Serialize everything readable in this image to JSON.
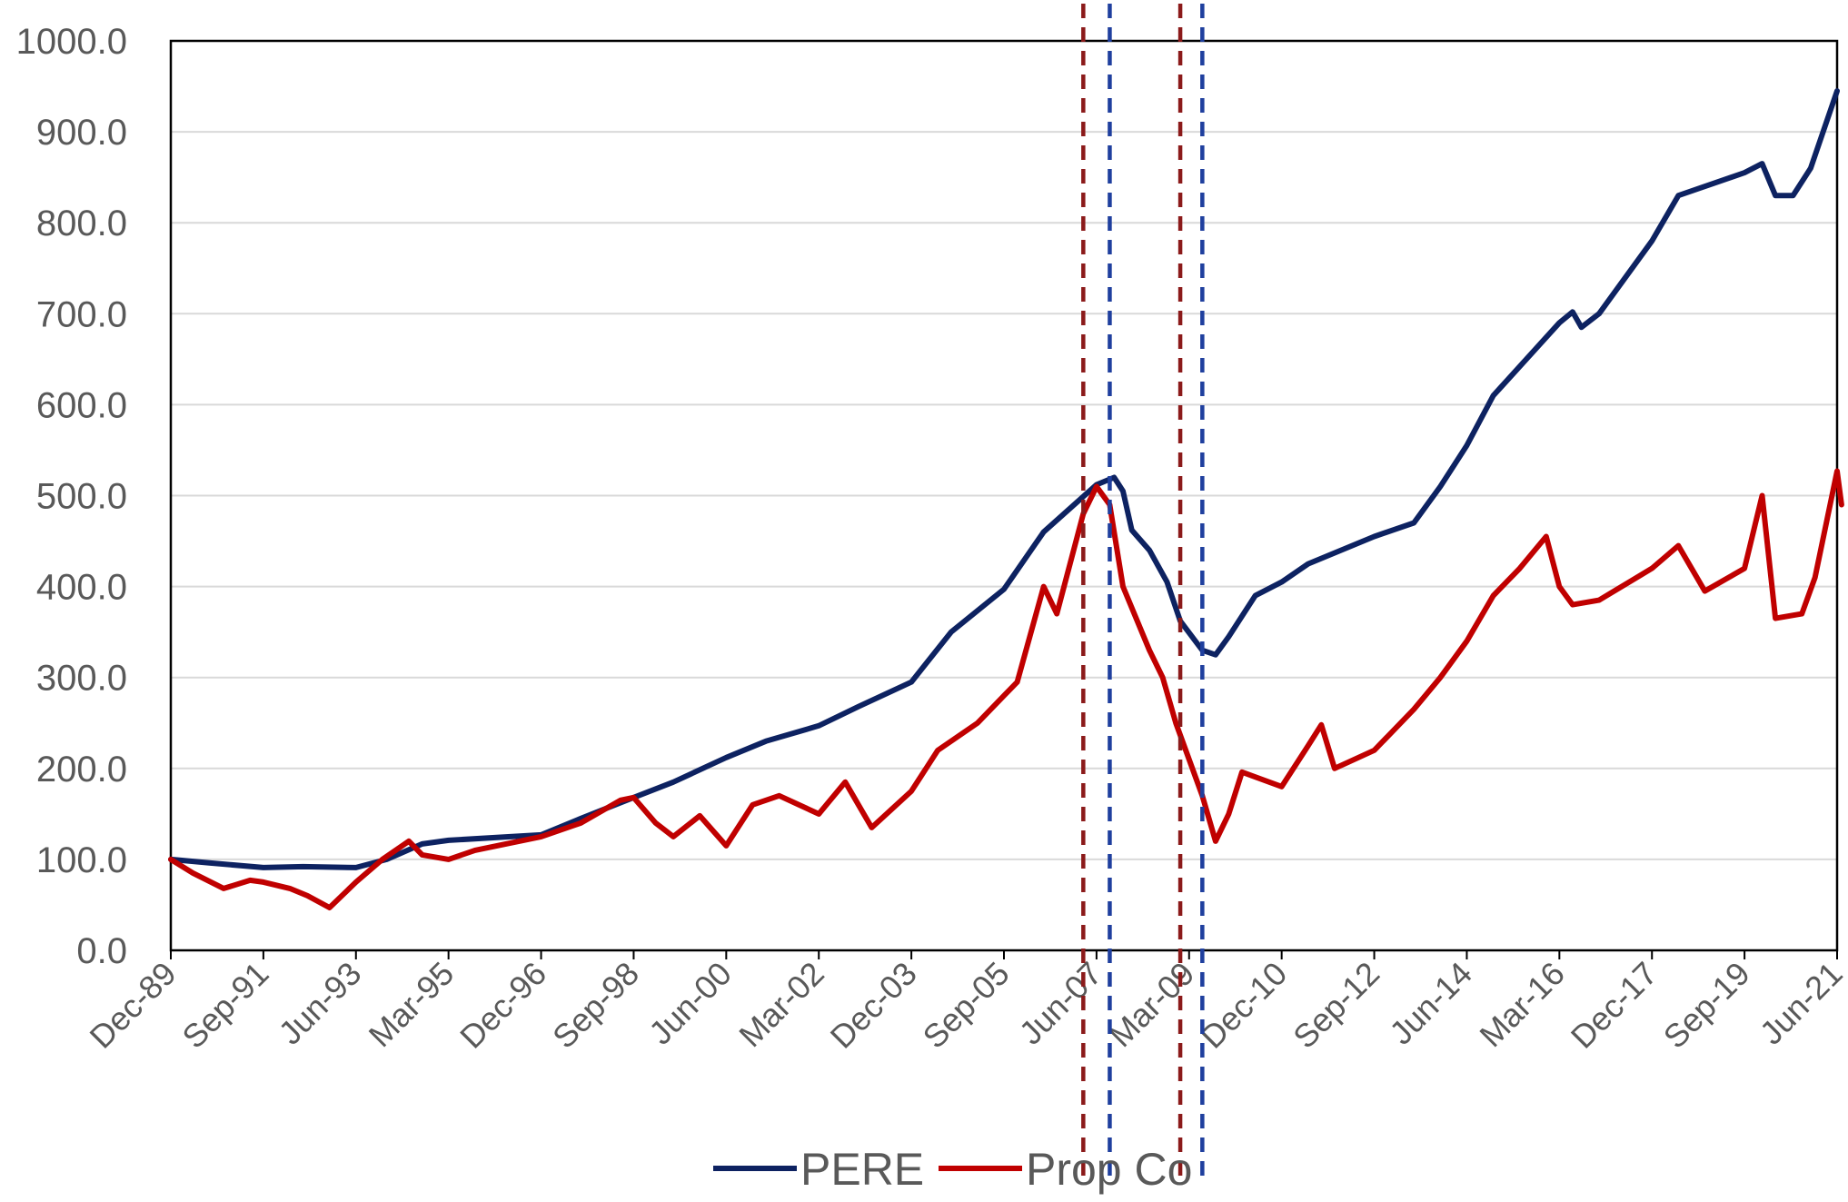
{
  "chart_data": {
    "type": "line",
    "title": "",
    "xlabel": "",
    "ylabel": "",
    "ylim": [
      0,
      1000
    ],
    "y_ticks": [
      "0.0",
      "100.0",
      "200.0",
      "300.0",
      "400.0",
      "500.0",
      "600.0",
      "700.0",
      "800.0",
      "900.0",
      "1000.0"
    ],
    "x_range": [
      "Dec-89",
      "Jun-21"
    ],
    "x_ticks": [
      "Dec-89",
      "Sep-91",
      "Jun-93",
      "Mar-95",
      "Dec-96",
      "Sep-98",
      "Jun-00",
      "Mar-02",
      "Dec-03",
      "Sep-05",
      "Jun-07",
      "Mar-09",
      "Dec-10",
      "Sep-12",
      "Jun-14",
      "Mar-16",
      "Dec-17",
      "Sep-19",
      "Jun-21"
    ],
    "grid": true,
    "legend": "bottom",
    "series": [
      {
        "name": "PERE",
        "color": "#0d2261",
        "points": [
          [
            "Dec-89",
            100
          ],
          [
            "Sep-90",
            96
          ],
          [
            "Sep-91",
            91
          ],
          [
            "Jun-92",
            92
          ],
          [
            "Jun-93",
            91
          ],
          [
            "Jan-94",
            100
          ],
          [
            "Sep-94",
            117
          ],
          [
            "Mar-95",
            121
          ],
          [
            "Dec-96",
            127
          ],
          [
            "Sep-97",
            145
          ],
          [
            "Sep-98",
            168
          ],
          [
            "Jun-99",
            185
          ],
          [
            "Jun-00",
            212
          ],
          [
            "Mar-01",
            230
          ],
          [
            "Mar-02",
            247
          ],
          [
            "Dec-02",
            268
          ],
          [
            "Dec-03",
            295
          ],
          [
            "Sep-04",
            350
          ],
          [
            "Sep-05",
            397
          ],
          [
            "Jun-06",
            460
          ],
          [
            "Jun-07",
            512
          ],
          [
            "Oct-07",
            520
          ],
          [
            "Dec-07",
            505
          ],
          [
            "Feb-08",
            462
          ],
          [
            "Jun-08",
            440
          ],
          [
            "Oct-08",
            405
          ],
          [
            "Jan-09",
            362
          ],
          [
            "Jun-09",
            330
          ],
          [
            "Sep-09",
            325
          ],
          [
            "Dec-09",
            345
          ],
          [
            "Jun-10",
            390
          ],
          [
            "Dec-10",
            405
          ],
          [
            "Jun-11",
            425
          ],
          [
            "Sep-12",
            455
          ],
          [
            "Jun-13",
            470
          ],
          [
            "Dec-13",
            510
          ],
          [
            "Jun-14",
            555
          ],
          [
            "Dec-14",
            610
          ],
          [
            "Mar-16",
            690
          ],
          [
            "Jun-16",
            702
          ],
          [
            "Aug-16",
            685
          ],
          [
            "Dec-16",
            700
          ],
          [
            "Dec-17",
            780
          ],
          [
            "Jun-18",
            830
          ],
          [
            "Sep-19",
            855
          ],
          [
            "Jan-20",
            865
          ],
          [
            "Apr-20",
            830
          ],
          [
            "Aug-20",
            830
          ],
          [
            "Dec-20",
            860
          ],
          [
            "Jun-21",
            945
          ]
        ]
      },
      {
        "name": "Prop Co",
        "color": "#c00000",
        "points": [
          [
            "Dec-89",
            100
          ],
          [
            "May-90",
            85
          ],
          [
            "Dec-90",
            68
          ],
          [
            "Jun-91",
            77
          ],
          [
            "Sep-91",
            75
          ],
          [
            "Mar-92",
            68
          ],
          [
            "Jul-92",
            60
          ],
          [
            "Dec-92",
            47
          ],
          [
            "Jun-93",
            75
          ],
          [
            "Dec-93",
            100
          ],
          [
            "Jun-94",
            120
          ],
          [
            "Sep-94",
            105
          ],
          [
            "Mar-95",
            100
          ],
          [
            "Sep-95",
            110
          ],
          [
            "Dec-96",
            125
          ],
          [
            "Sep-97",
            140
          ],
          [
            "Jun-98",
            165
          ],
          [
            "Sep-98",
            168
          ],
          [
            "Feb-99",
            140
          ],
          [
            "Jun-99",
            125
          ],
          [
            "Dec-99",
            148
          ],
          [
            "Jun-00",
            115
          ],
          [
            "Dec-00",
            160
          ],
          [
            "Jun-01",
            170
          ],
          [
            "Mar-02",
            150
          ],
          [
            "Sep-02",
            185
          ],
          [
            "Mar-03",
            135
          ],
          [
            "Dec-03",
            175
          ],
          [
            "Jun-04",
            220
          ],
          [
            "Mar-05",
            250
          ],
          [
            "Sep-05",
            280
          ],
          [
            "Dec-05",
            295
          ],
          [
            "Jun-06",
            400
          ],
          [
            "Sep-06",
            370
          ],
          [
            "Mar-07",
            480
          ],
          [
            "Jun-07",
            510
          ],
          [
            "Sep-07",
            490
          ],
          [
            "Dec-07",
            400
          ],
          [
            "Jun-08",
            330
          ],
          [
            "Sep-08",
            300
          ],
          [
            "Dec-08",
            250
          ],
          [
            "Jun-09",
            170
          ],
          [
            "Sep-09",
            120
          ],
          [
            "Dec-09",
            150
          ],
          [
            "Mar-10",
            196
          ],
          [
            "Dec-10",
            180
          ],
          [
            "Jun-11",
            225
          ],
          [
            "Sep-11",
            248
          ],
          [
            "Dec-11",
            200
          ],
          [
            "Sep-12",
            220
          ],
          [
            "Jun-13",
            265
          ],
          [
            "Dec-13",
            300
          ],
          [
            "Jun-14",
            340
          ],
          [
            "Dec-14",
            390
          ],
          [
            "Jun-15",
            420
          ],
          [
            "Dec-15",
            455
          ],
          [
            "Mar-16",
            400
          ],
          [
            "Jun-16",
            380
          ],
          [
            "Dec-16",
            385
          ],
          [
            "Dec-17",
            420
          ],
          [
            "Jun-18",
            445
          ],
          [
            "Dec-18",
            395
          ],
          [
            "Sep-19",
            420
          ],
          [
            "Jan-20",
            500
          ],
          [
            "Apr-20",
            365
          ],
          [
            "Oct-20",
            370
          ],
          [
            "Jan-21",
            410
          ],
          [
            "Jun-21",
            527
          ],
          [
            "Jul-21",
            490
          ]
        ]
      }
    ],
    "vertical_markers": [
      {
        "date": "Mar-07",
        "color": "#8b1a1a"
      },
      {
        "date": "Sep-07",
        "color": "#1f3f9e"
      },
      {
        "date": "Jan-09",
        "color": "#8b1a1a"
      },
      {
        "date": "Jun-09",
        "color": "#1f3f9e"
      }
    ]
  }
}
